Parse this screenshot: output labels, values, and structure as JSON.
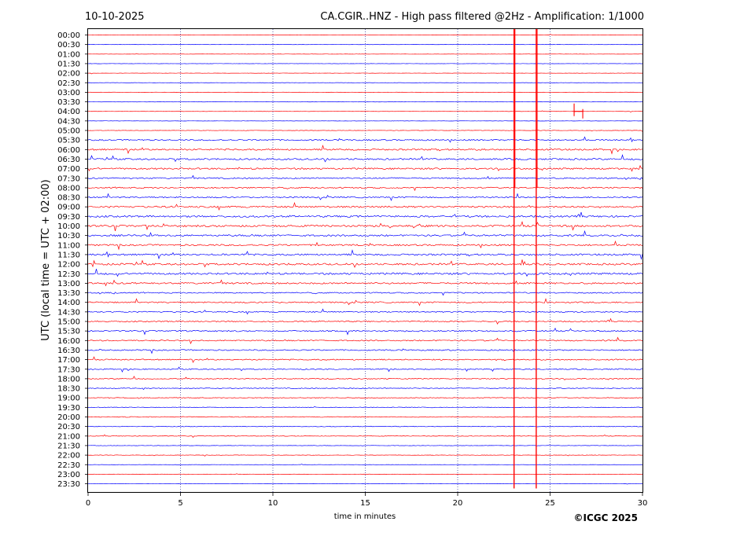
{
  "chart_data": {
    "type": "line",
    "date": "10-10-2025",
    "title": "CA.CGIR..HNZ - High pass filtered @2Hz - Amplification: 1/1000",
    "xlabel": "time in minutes",
    "ylabel": "UTC (local time = UTC + 02:00)",
    "copyright": "©ICGC 2025",
    "xlim": [
      0,
      30
    ],
    "x_ticks": [
      "0",
      "5",
      "10",
      "15",
      "20",
      "25",
      "30"
    ],
    "x_tick_values": [
      0,
      5,
      10,
      15,
      20,
      25,
      30
    ],
    "grid": "vertical dotted at 5-minute intervals",
    "trace_colors": [
      "#ff0000",
      "#0000ff"
    ],
    "traces": [
      "00:00",
      "00:30",
      "01:00",
      "01:30",
      "02:00",
      "02:30",
      "03:00",
      "03:30",
      "04:00",
      "04:30",
      "05:00",
      "05:30",
      "06:00",
      "06:30",
      "07:00",
      "07:30",
      "08:00",
      "08:30",
      "09:00",
      "09:30",
      "10:00",
      "10:30",
      "11:00",
      "11:30",
      "12:00",
      "12:30",
      "13:00",
      "13:30",
      "14:00",
      "14:30",
      "15:00",
      "15:30",
      "16:00",
      "16:30",
      "17:00",
      "17:30",
      "18:00",
      "18:30",
      "19:00",
      "19:30",
      "20:00",
      "20:30",
      "21:00",
      "21:30",
      "22:00",
      "22:30",
      "23:00",
      "23:30"
    ],
    "noise_level_by_trace": [
      0.2,
      0.2,
      0.2,
      0.2,
      0.2,
      0.2,
      0.2,
      0.3,
      0.2,
      0.2,
      0.3,
      1.0,
      1.2,
      1.2,
      1.2,
      1.0,
      1.0,
      1.0,
      1.3,
      1.4,
      1.5,
      1.3,
      1.2,
      1.3,
      1.4,
      1.4,
      1.2,
      0.9,
      1.0,
      0.9,
      0.9,
      1.0,
      0.9,
      0.9,
      0.9,
      0.8,
      0.7,
      0.6,
      0.6,
      0.5,
      0.6,
      0.5,
      0.4,
      0.3,
      0.3,
      0.2,
      0.2,
      0.2
    ],
    "events": [
      {
        "trace": "00:00",
        "minute": 23.05,
        "span_traces": 48,
        "color": "#ff0000"
      },
      {
        "trace": "00:00",
        "minute": 24.25,
        "span_traces": 48,
        "color": "#ff0000"
      },
      {
        "trace": "04:00",
        "minute": 26.3,
        "span_traces": 1,
        "color": "#ff0000"
      }
    ]
  }
}
